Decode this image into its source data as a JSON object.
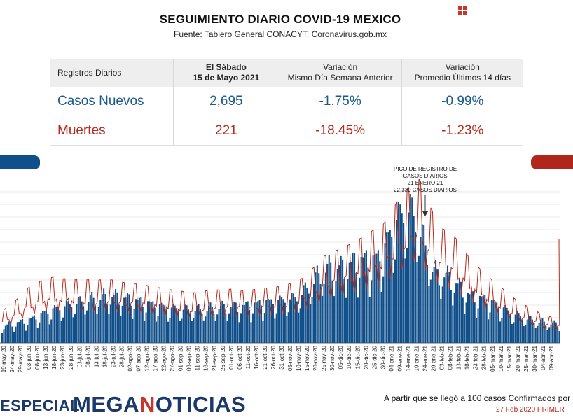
{
  "header": {
    "title": "SEGUIMIENTO DIARIO COVID-19 MEXICO",
    "source": "Fuente: Tablero General CONACYT. Coronavirus.gob.mx"
  },
  "table": {
    "col_label": "Registros Diarios",
    "col_date_line1": "El Sábado",
    "col_date_line2": "15 de Mayo 2021",
    "col_var1_line1": "Variación",
    "col_var1_line2": "Mismo Día Semana Anterior",
    "col_var2_line1": "Variación",
    "col_var2_line2": "Promedio Últimos 14 días",
    "rows": [
      {
        "label": "Casos Nuevos",
        "value": "2,695",
        "var_week": "-1.75%",
        "var_14": "-0.99%"
      },
      {
        "label": "Muertes",
        "value": "221",
        "var_week": "-18.45%",
        "var_14": "-1.23%"
      }
    ]
  },
  "colors": {
    "cases": "#114f8a",
    "deaths": "#b52a1c",
    "brand": "#1b3a6b"
  },
  "chart_data": {
    "type": "bar",
    "ylim": [
      0,
      24000
    ],
    "grid": true,
    "x_tick_labels": [
      "19-may-20",
      "24-may-20",
      "29-may-20",
      "03-jun-20",
      "08-jun-20",
      "13-jun-20",
      "18-jun-20",
      "23-jun-20",
      "28-jun-20",
      "03-jul-20",
      "08-jul-20",
      "13-jul-20",
      "18-jul-20",
      "23-jul-20",
      "28-jul-20",
      "02-ago-20",
      "07-ago-20",
      "12-ago-20",
      "17-ago-20",
      "22-ago-20",
      "27-ago-20",
      "01-sep-20",
      "06-sep-20",
      "11-sep-20",
      "16-sep-20",
      "21-sep-20",
      "26-sep-20",
      "01-oct-20",
      "06-oct-20",
      "11-oct-20",
      "16-oct-20",
      "21-oct-20",
      "26-oct-20",
      "31-oct-20",
      "05-nov-20",
      "10-nov-20",
      "15-nov-20",
      "20-nov-20",
      "25-nov-20",
      "30-nov-20",
      "05-dic-20",
      "10-dic-20",
      "15-dic-20",
      "20-dic-20",
      "25-dic-20",
      "30-dic-20",
      "04-ene-21",
      "09-ene-21",
      "14-ene-21",
      "19-ene-21",
      "24-ene-21",
      "29-ene-21",
      "03-feb-21",
      "08-feb-21",
      "13-feb-21",
      "18-feb-21",
      "23-feb-21",
      "28-feb-21",
      "05-mar-21",
      "10-mar-21",
      "15-mar-21",
      "20-mar-21",
      "25-mar-21",
      "30-mar-21",
      "04-abr-21",
      "09-abr-21"
    ],
    "series": [
      {
        "type": "bar",
        "weekly_cases": [
          2500,
          3000,
          3200,
          3500,
          4000,
          4700,
          5200,
          5500,
          6000,
          6300,
          6700,
          6900,
          7200,
          7300,
          7100,
          6800,
          6500,
          6200,
          5900,
          5600,
          5400,
          5300,
          5200,
          5200,
          5300,
          5400,
          5600,
          5600,
          5700,
          5800,
          6000,
          6300,
          6400,
          6600,
          6800,
          7200,
          8500,
          10000,
          11500,
          11800,
          11700,
          12300,
          12700,
          13000,
          12800,
          14200,
          17500,
          19800,
          20800,
          19000,
          15000,
          11000,
          10800,
          10000,
          8800,
          7500,
          7000,
          6800,
          6200,
          5500,
          4800,
          4200,
          3800,
          3500,
          3200,
          3000
        ]
      },
      {
        "type": "line",
        "weekly_deaths_scaled": [
          3500,
          4200,
          5000,
          6000,
          6500,
          7000,
          7200,
          7000,
          7100,
          6900,
          7000,
          6800,
          7000,
          6900,
          6700,
          6500,
          6500,
          6300,
          6100,
          6000,
          5800,
          5700,
          5500,
          5500,
          5700,
          5800,
          5800,
          5900,
          5800,
          5700,
          5900,
          6000,
          6100,
          6200,
          6500,
          6800,
          7500,
          8500,
          9500,
          10000,
          10300,
          10800,
          11300,
          11800,
          12500,
          13000,
          14500,
          16000,
          17000,
          18500,
          16000,
          14000,
          12500,
          12000,
          11000,
          9500,
          8500,
          7500,
          6800,
          6000,
          5200,
          4500,
          4000,
          3500,
          3000,
          2800
        ]
      }
    ],
    "annotation": {
      "line1": "PICO DE REGISTRO DE",
      "line2": "CASOS DIARIOS",
      "line3": "21 ENERO 21",
      "line4": "22,339 CASOS DIARIOS",
      "peak_value": 22339
    }
  },
  "footer": {
    "special": "ESPECIAL",
    "brand_part1": "MEGA",
    "brand_part2": "N",
    "brand_part3": "OTICIAS",
    "note": "A partir que se llegó a 100 casos Confirmados por",
    "date": "27 Feb 2020 PRIMER"
  }
}
